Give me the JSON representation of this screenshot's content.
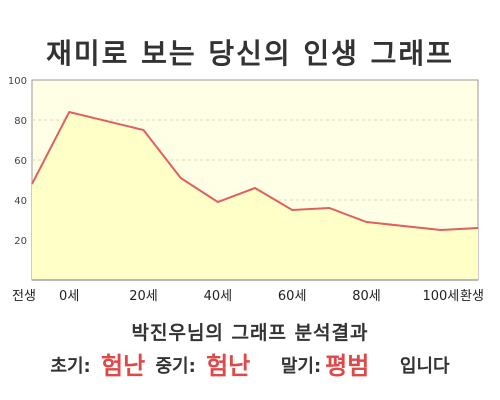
{
  "header": {
    "title": "재미로 보는 당신의 인생 그래프"
  },
  "chart_data": {
    "type": "area",
    "x": [
      -10,
      0,
      20,
      30,
      40,
      50,
      60,
      70,
      80,
      100,
      110
    ],
    "y": [
      48,
      84,
      75,
      51,
      39,
      46,
      35,
      36,
      29,
      25,
      26
    ],
    "xticks": [
      -10,
      0,
      20,
      40,
      60,
      80,
      100,
      110
    ],
    "xtick_labels": [
      "전생",
      "0세",
      "20세",
      "40세",
      "60세",
      "80세",
      "100세",
      "환생"
    ],
    "yticks": [
      20,
      40,
      60,
      80,
      100
    ],
    "xlim": [
      -10,
      110
    ],
    "ylim": [
      0,
      100
    ],
    "grid": true,
    "line_color": "#e06060",
    "fill_color": "#ffffc8",
    "background_color": "#ffffe6"
  },
  "summary": {
    "subtitle": "박진우님의 그래프 분석결과",
    "early_label": "초기:",
    "early_value": "험난",
    "middle_label": "중기:",
    "middle_value": "험난",
    "late_label": "말기:",
    "late_value": "평범",
    "ending": "입니다"
  }
}
